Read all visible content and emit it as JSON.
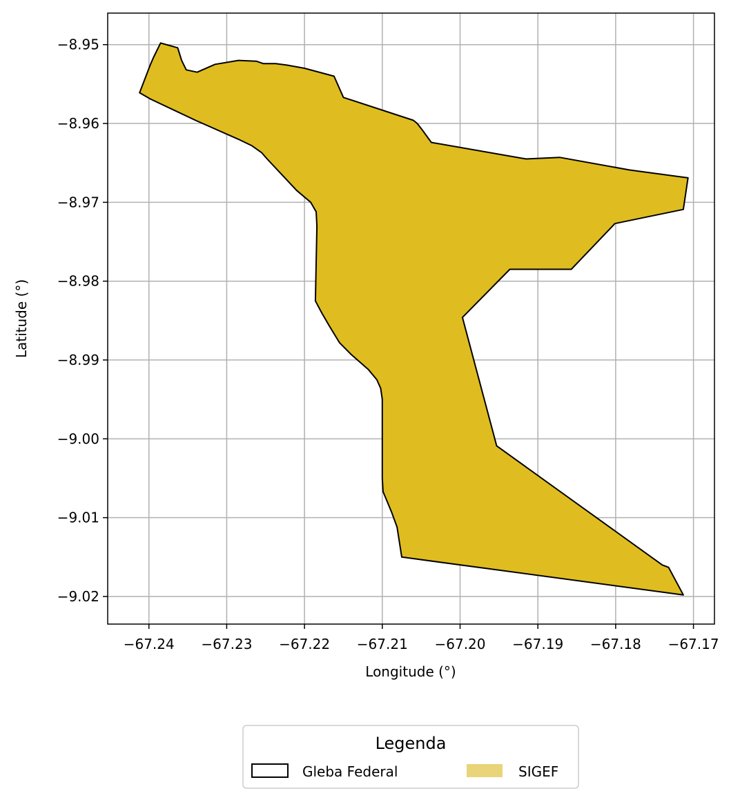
{
  "chart_data": {
    "type": "map",
    "xlabel": "Longitude (°)",
    "ylabel": "Latitude (°)",
    "xlim": [
      -67.2453,
      -67.1673
    ],
    "ylim": [
      -9.0235,
      -8.946
    ],
    "grid": true,
    "x_ticks": [
      {
        "value": -67.24,
        "label": "−67.24"
      },
      {
        "value": -67.23,
        "label": "−67.23"
      },
      {
        "value": -67.22,
        "label": "−67.22"
      },
      {
        "value": -67.21,
        "label": "−67.21"
      },
      {
        "value": -67.2,
        "label": "−67.20"
      },
      {
        "value": -67.19,
        "label": "−67.19"
      },
      {
        "value": -67.18,
        "label": "−67.18"
      },
      {
        "value": -67.17,
        "label": "−67.17"
      }
    ],
    "y_ticks": [
      {
        "value": -8.95,
        "label": "−8.95"
      },
      {
        "value": -8.96,
        "label": "−8.96"
      },
      {
        "value": -8.97,
        "label": "−8.97"
      },
      {
        "value": -8.98,
        "label": "−8.98"
      },
      {
        "value": -8.99,
        "label": "−8.99"
      },
      {
        "value": -9.0,
        "label": "−9.00"
      },
      {
        "value": -9.01,
        "label": "−9.01"
      },
      {
        "value": -9.02,
        "label": "−9.02"
      }
    ],
    "polygon": {
      "name": "SIGEF",
      "fill": "#dfbd20",
      "stroke": "#000000",
      "coordinates": [
        [
          -67.2412,
          -8.9561
        ],
        [
          -67.2398,
          -8.9569
        ],
        [
          -67.234,
          -8.9596
        ],
        [
          -67.2285,
          -8.962
        ],
        [
          -67.2268,
          -8.9628
        ],
        [
          -67.2255,
          -8.9637
        ],
        [
          -67.2248,
          -8.9645
        ],
        [
          -67.223,
          -8.9664
        ],
        [
          -67.221,
          -8.9685
        ],
        [
          -67.2192,
          -8.97
        ],
        [
          -67.2185,
          -8.9712
        ],
        [
          -67.2184,
          -8.973
        ],
        [
          -67.2186,
          -8.9825
        ],
        [
          -67.2178,
          -8.984
        ],
        [
          -67.2168,
          -8.9857
        ],
        [
          -67.2155,
          -8.9878
        ],
        [
          -67.214,
          -8.9893
        ],
        [
          -67.2118,
          -8.9912
        ],
        [
          -67.2107,
          -8.9925
        ],
        [
          -67.2102,
          -8.9936
        ],
        [
          -67.21,
          -8.995
        ],
        [
          -67.21,
          -9.005
        ],
        [
          -67.2099,
          -9.0067
        ],
        [
          -67.2088,
          -9.0093
        ],
        [
          -67.2081,
          -9.0112
        ],
        [
          -67.2075,
          -9.015
        ],
        [
          -67.1713,
          -9.0198
        ],
        [
          -67.1732,
          -9.0163
        ],
        [
          -67.174,
          -9.016
        ],
        [
          -67.1953,
          -9.0009
        ],
        [
          -67.1997,
          -8.9846
        ],
        [
          -67.1936,
          -8.9785
        ],
        [
          -67.1857,
          -8.9785
        ],
        [
          -67.1801,
          -8.9727
        ],
        [
          -67.1713,
          -8.9709
        ],
        [
          -67.1707,
          -8.9669
        ],
        [
          -67.1782,
          -8.9659
        ],
        [
          -67.1872,
          -8.9643
        ],
        [
          -67.1915,
          -8.9645
        ],
        [
          -67.1921,
          -8.9644
        ],
        [
          -67.2037,
          -8.9624
        ],
        [
          -67.2048,
          -8.9609
        ],
        [
          -67.2055,
          -8.96
        ],
        [
          -67.206,
          -8.9596
        ],
        [
          -67.215,
          -8.9567
        ],
        [
          -67.2162,
          -8.954
        ],
        [
          -67.22,
          -8.953
        ],
        [
          -67.2222,
          -8.9526
        ],
        [
          -67.2237,
          -8.9524
        ],
        [
          -67.2253,
          -8.9524
        ],
        [
          -67.2262,
          -8.9521
        ],
        [
          -67.2285,
          -8.952
        ],
        [
          -67.2315,
          -8.9525
        ],
        [
          -67.2338,
          -8.9535
        ],
        [
          -67.2352,
          -8.9532
        ],
        [
          -67.2358,
          -8.952
        ],
        [
          -67.2363,
          -8.9504
        ],
        [
          -67.2385,
          -8.9498
        ],
        [
          -67.2394,
          -8.9516
        ],
        [
          -67.2398,
          -8.9525
        ]
      ]
    }
  },
  "legend": {
    "title": "Legenda",
    "items": [
      {
        "label": "Gleba Federal",
        "style": "outline",
        "stroke": "#000000"
      },
      {
        "label": "SIGEF",
        "style": "filled",
        "fill": "#e9d479"
      }
    ]
  }
}
